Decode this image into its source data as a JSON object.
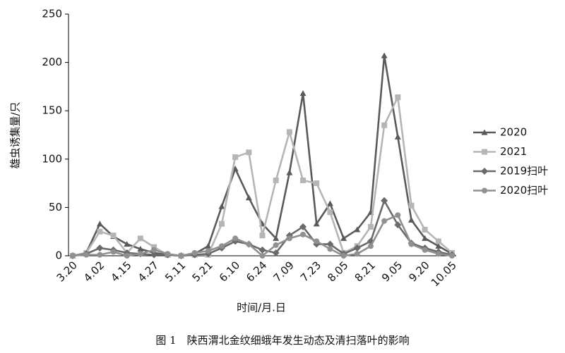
{
  "chart_data": {
    "type": "line",
    "y_label": "雄虫诱集量/只",
    "x_label": "时间/月.日",
    "caption": "图 1　陕西渭北金纹细蛾年发生动态及清扫落叶的影响",
    "categories": [
      "3.20",
      null,
      "4.02",
      null,
      "4.15",
      null,
      "4.27",
      null,
      "5.11",
      null,
      "5.21",
      null,
      "6.10",
      null,
      "6.24",
      null,
      "7.09",
      null,
      "7.23",
      null,
      "8.05",
      null,
      "8.21",
      null,
      "9.05",
      null,
      "9.20",
      null,
      "10.05"
    ],
    "ylim": [
      0,
      250
    ],
    "yticks": [
      0,
      50,
      100,
      150,
      200,
      250
    ],
    "legend": "right",
    "series": [
      {
        "name": "2020",
        "color": "#5a5a5a",
        "marker": "triangle",
        "values": [
          0,
          3,
          33,
          20,
          12,
          7,
          3,
          1,
          0,
          2,
          10,
          51,
          90,
          60,
          33,
          18,
          86,
          168,
          33,
          54,
          18,
          27,
          45,
          207,
          123,
          37,
          18,
          10,
          2
        ]
      },
      {
        "name": "2021",
        "color": "#b5b5b5",
        "marker": "square",
        "values": [
          0,
          3,
          25,
          21,
          3,
          18,
          9,
          1,
          0,
          1,
          1,
          33,
          102,
          107,
          21,
          78,
          128,
          78,
          75,
          45,
          3,
          10,
          30,
          135,
          164,
          52,
          27,
          15,
          3
        ]
      },
      {
        "name": "2019扫叶",
        "color": "#6a6a6a",
        "marker": "diamond",
        "values": [
          0,
          2,
          8,
          6,
          3,
          2,
          1,
          1,
          0,
          1,
          2,
          8,
          15,
          12,
          6,
          3,
          21,
          30,
          12,
          12,
          2,
          8,
          15,
          57,
          32,
          13,
          8,
          4,
          1
        ]
      },
      {
        "name": "2020扫叶",
        "color": "#909090",
        "marker": "circle",
        "values": [
          0,
          1,
          1,
          4,
          0,
          2,
          6,
          2,
          0,
          3,
          5,
          10,
          18,
          12,
          0,
          11,
          18,
          22,
          15,
          7,
          0,
          2,
          10,
          36,
          42,
          12,
          6,
          2,
          0
        ]
      }
    ]
  }
}
